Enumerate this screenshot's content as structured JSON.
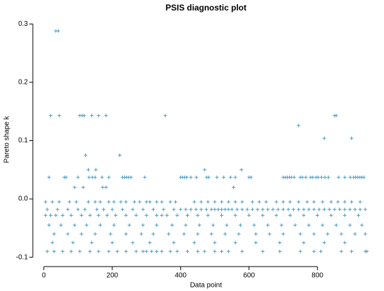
{
  "chart_data": {
    "type": "scatter",
    "title": "PSIS diagnostic plot",
    "x_label": "Data point",
    "y_label": "Pareto shape k",
    "color": "#4a9cc4",
    "xlim": [
      -20,
      960
    ],
    "ylim": [
      -0.11,
      0.31
    ],
    "xticks": [
      0,
      200,
      400,
      600,
      800
    ],
    "yticks": [
      -0.1,
      {
        "value": 0,
        "label": "0.0"
      },
      0.1,
      0.2,
      0.3
    ],
    "x": [
      35,
      42,
      20,
      45,
      105,
      112,
      118,
      140,
      160,
      182,
      355,
      850,
      855,
      745,
      820,
      900,
      122,
      222,
      130,
      152,
      470,
      578,
      90,
      115,
      172,
      182,
      555,
      15,
      60,
      65,
      100,
      132,
      142,
      150,
      170,
      190,
      230,
      236,
      242,
      248,
      255,
      295,
      400,
      406,
      412,
      418,
      430,
      446,
      476,
      482,
      506,
      526,
      546,
      560,
      600,
      606,
      700,
      706,
      712,
      718,
      724,
      732,
      750,
      756,
      766,
      780,
      786,
      796,
      802,
      812,
      822,
      832,
      862,
      880,
      896,
      906,
      912,
      918,
      924,
      930,
      936,
      5,
      25,
      45,
      75,
      95,
      130,
      150,
      165,
      190,
      205,
      225,
      240,
      265,
      280,
      300,
      310,
      330,
      345,
      370,
      385,
      440,
      460,
      480,
      500,
      520,
      540,
      560,
      580,
      610,
      630,
      650,
      680,
      700,
      720,
      745,
      770,
      790,
      815,
      840,
      860,
      880,
      900,
      925,
      10,
      40,
      70,
      100,
      120,
      155,
      175,
      200,
      230,
      260,
      290,
      320,
      350,
      380,
      400,
      415,
      430,
      445,
      460,
      475,
      490,
      500,
      510,
      520,
      530,
      540,
      550,
      565,
      580,
      595,
      610,
      625,
      640,
      655,
      670,
      685,
      700,
      715,
      730,
      745,
      760,
      775,
      790,
      805,
      820,
      835,
      850,
      865,
      880,
      895,
      910,
      925,
      940,
      5,
      20,
      35,
      55,
      80,
      110,
      135,
      160,
      185,
      210,
      240,
      270,
      300,
      330,
      345,
      360,
      390,
      420,
      450,
      480,
      520,
      560,
      600,
      640,
      680,
      720,
      760,
      800,
      840,
      880,
      920,
      15,
      50,
      90,
      125,
      165,
      205,
      250,
      290,
      330,
      375,
      415,
      455,
      495,
      535,
      575,
      615,
      655,
      695,
      735,
      775,
      815,
      855,
      895,
      930,
      30,
      70,
      110,
      150,
      195,
      240,
      285,
      320,
      365,
      410,
      450,
      490,
      530,
      570,
      620,
      660,
      700,
      750,
      790,
      830,
      870,
      910,
      940,
      25,
      85,
      140,
      200,
      260,
      310,
      380,
      440,
      500,
      560,
      620,
      690,
      760,
      820,
      880,
      10,
      30,
      55,
      80,
      105,
      135,
      160,
      190,
      215,
      240,
      270,
      290,
      300,
      315,
      330,
      345,
      370,
      390,
      420,
      450,
      470,
      500,
      520,
      540,
      580,
      640,
      690,
      750,
      790,
      810,
      870,
      900,
      940,
      945
    ],
    "values": [
      0.288,
      0.288,
      0.143,
      0.143,
      0.143,
      0.143,
      0.143,
      0.143,
      0.143,
      0.143,
      0.143,
      0.143,
      0.143,
      0.126,
      0.104,
      0.104,
      0.075,
      0.075,
      0.05,
      0.05,
      0.05,
      0.05,
      0.02,
      0.02,
      0.02,
      0.02,
      0.02,
      0.037,
      0.037,
      0.037,
      0.037,
      0.037,
      0.037,
      0.037,
      0.037,
      0.037,
      0.037,
      0.037,
      0.037,
      0.037,
      0.037,
      0.037,
      0.037,
      0.037,
      0.037,
      0.037,
      0.037,
      0.037,
      0.037,
      0.037,
      0.037,
      0.037,
      0.037,
      0.037,
      0.037,
      0.037,
      0.037,
      0.037,
      0.037,
      0.037,
      0.037,
      0.037,
      0.037,
      0.037,
      0.037,
      0.037,
      0.037,
      0.037,
      0.037,
      0.037,
      0.037,
      0.037,
      0.037,
      0.037,
      0.037,
      0.037,
      0.037,
      0.037,
      0.037,
      0.037,
      0.037,
      -0.005,
      -0.005,
      -0.005,
      -0.005,
      -0.005,
      -0.005,
      -0.005,
      -0.005,
      -0.005,
      -0.005,
      -0.005,
      -0.005,
      -0.005,
      -0.005,
      -0.005,
      -0.005,
      -0.005,
      -0.005,
      -0.005,
      -0.005,
      -0.005,
      -0.005,
      -0.005,
      -0.005,
      -0.005,
      -0.005,
      -0.005,
      -0.005,
      -0.005,
      -0.005,
      -0.005,
      -0.005,
      -0.005,
      -0.005,
      -0.005,
      -0.005,
      -0.005,
      -0.005,
      -0.005,
      -0.005,
      -0.005,
      -0.005,
      -0.005,
      -0.018,
      -0.018,
      -0.018,
      -0.018,
      -0.018,
      -0.018,
      -0.018,
      -0.018,
      -0.018,
      -0.018,
      -0.018,
      -0.018,
      -0.018,
      -0.018,
      -0.018,
      -0.018,
      -0.018,
      -0.018,
      -0.018,
      -0.018,
      -0.018,
      -0.018,
      -0.018,
      -0.018,
      -0.018,
      -0.018,
      -0.018,
      -0.018,
      -0.018,
      -0.018,
      -0.018,
      -0.018,
      -0.018,
      -0.018,
      -0.018,
      -0.018,
      -0.018,
      -0.018,
      -0.018,
      -0.018,
      -0.018,
      -0.018,
      -0.018,
      -0.018,
      -0.018,
      -0.018,
      -0.018,
      -0.018,
      -0.018,
      -0.018,
      -0.018,
      -0.018,
      -0.018,
      -0.028,
      -0.028,
      -0.028,
      -0.028,
      -0.028,
      -0.028,
      -0.028,
      -0.028,
      -0.028,
      -0.028,
      -0.028,
      -0.028,
      -0.028,
      -0.028,
      -0.028,
      -0.028,
      -0.028,
      -0.028,
      -0.028,
      -0.028,
      -0.028,
      -0.028,
      -0.028,
      -0.028,
      -0.028,
      -0.028,
      -0.028,
      -0.028,
      -0.028,
      -0.028,
      -0.028,
      -0.045,
      -0.045,
      -0.045,
      -0.045,
      -0.045,
      -0.045,
      -0.045,
      -0.045,
      -0.045,
      -0.045,
      -0.045,
      -0.045,
      -0.045,
      -0.045,
      -0.045,
      -0.045,
      -0.045,
      -0.045,
      -0.045,
      -0.045,
      -0.045,
      -0.045,
      -0.045,
      -0.045,
      -0.06,
      -0.06,
      -0.06,
      -0.06,
      -0.06,
      -0.06,
      -0.06,
      -0.06,
      -0.06,
      -0.06,
      -0.06,
      -0.06,
      -0.06,
      -0.06,
      -0.06,
      -0.06,
      -0.06,
      -0.06,
      -0.06,
      -0.06,
      -0.06,
      -0.06,
      -0.06,
      -0.075,
      -0.075,
      -0.075,
      -0.075,
      -0.075,
      -0.075,
      -0.075,
      -0.075,
      -0.075,
      -0.075,
      -0.075,
      -0.075,
      -0.075,
      -0.075,
      -0.075,
      -0.09,
      -0.09,
      -0.09,
      -0.09,
      -0.09,
      -0.09,
      -0.09,
      -0.09,
      -0.09,
      -0.09,
      -0.09,
      -0.09,
      -0.09,
      -0.09,
      -0.09,
      -0.09,
      -0.09,
      -0.09,
      -0.09,
      -0.09,
      -0.09,
      -0.09,
      -0.09,
      -0.09,
      -0.09,
      -0.09,
      -0.09,
      -0.09,
      -0.09,
      -0.09,
      -0.09,
      -0.09,
      -0.09,
      -0.09
    ]
  }
}
